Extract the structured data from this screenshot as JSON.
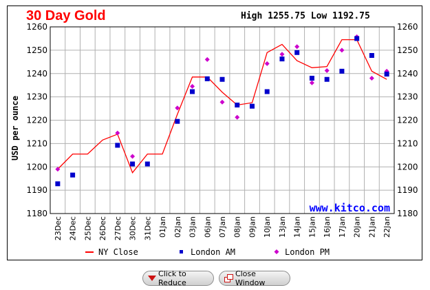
{
  "chart_data": {
    "type": "line",
    "title": "30 Day Gold",
    "high_low": "High 1255.75 Low 1192.75",
    "ylabel": "USD per ounce",
    "watermark": "www.kitco.com",
    "ylim": [
      1180,
      1260
    ],
    "yticks": [
      1180,
      1190,
      1200,
      1210,
      1220,
      1230,
      1240,
      1250,
      1260
    ],
    "categories": [
      "23Dec",
      "24Dec",
      "25Dec",
      "26Dec",
      "27Dec",
      "30Dec",
      "31Dec",
      "01Jan",
      "02Jan",
      "03Jan",
      "06Jan",
      "07Jan",
      "08Jan",
      "09Jan",
      "10Jan",
      "13Jan",
      "14Jan",
      "15Jan",
      "16Jan",
      "17Jan",
      "20Jan",
      "21Jan",
      "22Jan"
    ],
    "series": [
      {
        "name": "NY Close",
        "style": "line",
        "color": "#ff0000",
        "values": [
          1199,
          1205.5,
          1205.5,
          1211.5,
          1214,
          1197.5,
          1205.5,
          1205.5,
          1222.5,
          1238.5,
          1238.5,
          1232,
          1226.5,
          1227.5,
          1249,
          1252.5,
          1245.5,
          1242.5,
          1243,
          1254.5,
          1254.5,
          1241,
          1237.5
        ]
      },
      {
        "name": "London AM",
        "style": "square",
        "color": "#0000cc",
        "values": [
          1192.75,
          1196.5,
          null,
          null,
          1209.25,
          1201.25,
          1201.25,
          null,
          1219.5,
          1232.25,
          1237.75,
          1237.5,
          1226.5,
          1226,
          1232.25,
          1246.25,
          1249,
          1238,
          1237.5,
          1241,
          1255,
          1247.75,
          1239.75
        ]
      },
      {
        "name": "London PM",
        "style": "diamond",
        "color": "#cc00cc",
        "values": [
          1199,
          null,
          null,
          null,
          1214.5,
          1204.5,
          null,
          null,
          1225.25,
          1234.5,
          1246,
          1227.75,
          1221.25,
          1226,
          1244.25,
          1248.25,
          1251.5,
          1236,
          1241.25,
          1250,
          1255.75,
          1238,
          1241
        ]
      }
    ]
  },
  "buttons": {
    "reduce_label": "Click to Reduce",
    "close_label": "Close Window"
  }
}
